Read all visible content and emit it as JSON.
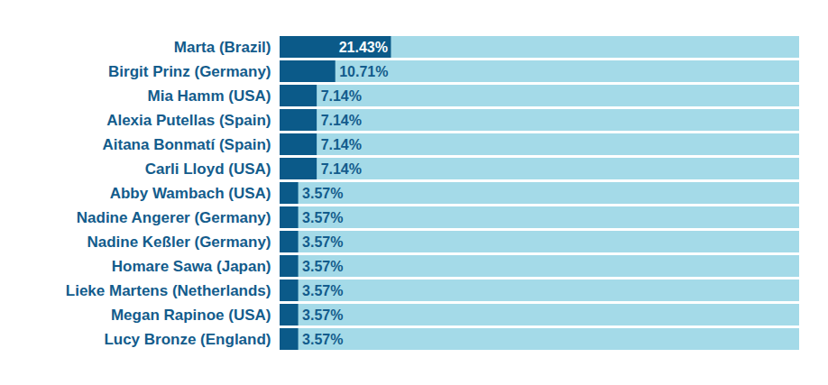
{
  "chart_data": {
    "type": "bar",
    "orientation": "horizontal",
    "categories": [
      "Marta (Brazil)",
      "Birgit Prinz (Germany)",
      "Mia Hamm (USA)",
      "Alexia Putellas (Spain)",
      "Aitana Bonmatí (Spain)",
      "Carli Lloyd (USA)",
      "Abby Wambach (USA)",
      "Nadine Angerer (Germany)",
      "Nadine Keßler (Germany)",
      "Homare Sawa (Japan)",
      "Lieke Martens (Netherlands)",
      "Megan Rapinoe (USA)",
      "Lucy Bronze (England)"
    ],
    "values": [
      21.43,
      10.71,
      7.14,
      7.14,
      7.14,
      7.14,
      3.57,
      3.57,
      3.57,
      3.57,
      3.57,
      3.57,
      3.57
    ],
    "value_labels": [
      "21.43%",
      "10.71%",
      "7.14%",
      "7.14%",
      "7.14%",
      "7.14%",
      "3.57%",
      "3.57%",
      "3.57%",
      "3.57%",
      "3.57%",
      "3.57%",
      "3.57%"
    ],
    "color": "#0b5a89",
    "xlim": [
      0,
      100
    ],
    "data_labels": true,
    "tick_labels": "y",
    "grid": false
  }
}
